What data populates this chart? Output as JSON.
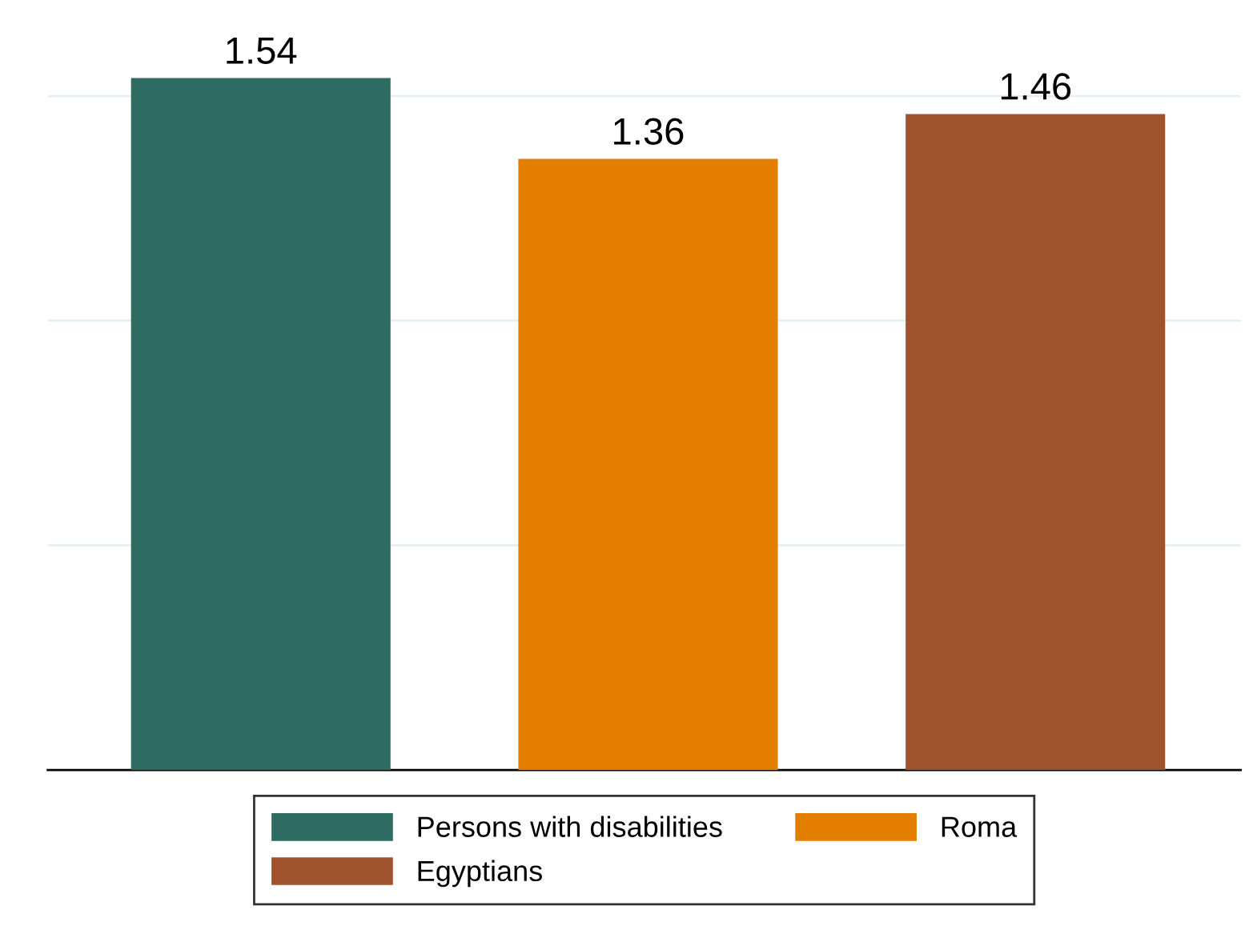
{
  "chart_data": {
    "type": "bar",
    "stacked": true,
    "categories": [
      null,
      null,
      null
    ],
    "series": [
      {
        "name": "Persons with disabilities",
        "color": "#2e6b63",
        "values": [
          1.54,
          null,
          null
        ]
      },
      {
        "name": "Egyptians",
        "color": "#a0522d",
        "values": [
          null,
          null,
          1.46
        ]
      },
      {
        "name": "Roma",
        "color": "#e37e00",
        "values": [
          null,
          1.36,
          null
        ]
      }
    ],
    "yticks": [
      {
        "value": 0,
        "label": null
      },
      {
        "value": 0.5,
        "label": null
      },
      {
        "value": 1.0,
        "label": null
      },
      {
        "value": 1.5,
        "label": null
      }
    ],
    "grid": "y",
    "legend": "bottom",
    "data_labels": true
  }
}
